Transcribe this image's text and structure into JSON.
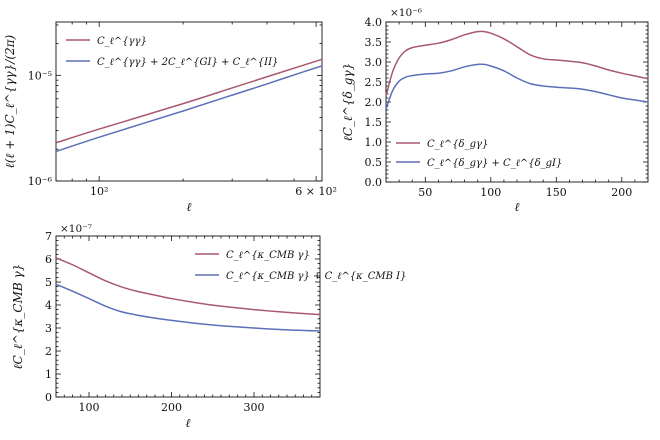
{
  "colors": {
    "series1": "#a8596e",
    "series2": "#5d6fb9",
    "axes": "#111111"
  },
  "chart_data": [
    {
      "type": "line",
      "xscale": "log",
      "yscale": "log",
      "xlabel": "ℓ",
      "ylabel": "ℓ(ℓ + 1)C_ℓ^{γγ}/(2π)",
      "xlim": [
        70,
        630
      ],
      "ylim": [
        1e-06,
        3.2e-05
      ],
      "tick_labels_x": [
        "10²",
        "6 × 10²"
      ],
      "tick_labels_y": [
        "10⁻⁶",
        "10⁻⁵"
      ],
      "grid": false,
      "legend_position": "top-left",
      "series": [
        {
          "name": "C_ℓ^{γγ}",
          "x": [
            70,
            100,
            200,
            300,
            400,
            500,
            630
          ],
          "y": [
            2.3e-06,
            3.1e-06,
            5.4e-06,
            7.6e-06,
            9.7e-06,
            1.17e-05,
            1.42e-05
          ]
        },
        {
          "name": "C_ℓ^{γγ} + 2C_ℓ^{GI} + C_ℓ^{II}",
          "x": [
            70,
            100,
            200,
            300,
            400,
            500,
            630
          ],
          "y": [
            1.9e-06,
            2.6e-06,
            4.6e-06,
            6.5e-06,
            8.3e-06,
            1.01e-05,
            1.23e-05
          ]
        }
      ]
    },
    {
      "type": "line",
      "xlabel": "ℓ",
      "ylabel": "ℓC_ℓ^{δ_gγ}",
      "xlim": [
        20,
        220
      ],
      "ylim": [
        0,
        4.0
      ],
      "y_multiplier": "×10⁻⁶",
      "tick_labels_x": [
        "50",
        "100",
        "150",
        "200"
      ],
      "tick_labels_y": [
        "0.0",
        "0.5",
        "1.0",
        "1.5",
        "2.0",
        "2.5",
        "3.0",
        "3.5",
        "4.0"
      ],
      "grid": false,
      "legend_position": "bottom-left",
      "series": [
        {
          "name": "C_ℓ^{δ_gγ}",
          "x": [
            20,
            25,
            30,
            35,
            40,
            50,
            60,
            70,
            80,
            90,
            95,
            100,
            110,
            120,
            130,
            140,
            150,
            160,
            170,
            180,
            190,
            200,
            210,
            220
          ],
          "y": [
            2.15,
            2.75,
            3.1,
            3.28,
            3.36,
            3.42,
            3.47,
            3.56,
            3.68,
            3.76,
            3.76,
            3.72,
            3.58,
            3.38,
            3.18,
            3.08,
            3.05,
            3.02,
            2.98,
            2.9,
            2.8,
            2.72,
            2.65,
            2.58
          ]
        },
        {
          "name": "C_ℓ^{δ_gγ} + C_ℓ^{δ_gI}",
          "x": [
            20,
            25,
            30,
            35,
            40,
            50,
            60,
            70,
            80,
            90,
            95,
            100,
            110,
            120,
            130,
            140,
            150,
            160,
            170,
            180,
            190,
            200,
            210,
            220
          ],
          "y": [
            1.82,
            2.28,
            2.52,
            2.62,
            2.66,
            2.7,
            2.72,
            2.78,
            2.88,
            2.94,
            2.94,
            2.9,
            2.78,
            2.6,
            2.46,
            2.4,
            2.37,
            2.35,
            2.32,
            2.26,
            2.18,
            2.1,
            2.05,
            2.0
          ]
        }
      ]
    },
    {
      "type": "line",
      "xlabel": "ℓ",
      "ylabel": "ℓC_ℓ^{κ_CMB γ}",
      "xlim": [
        60,
        380
      ],
      "ylim": [
        0,
        7
      ],
      "y_multiplier": "×10⁻⁷",
      "tick_labels_x": [
        "100",
        "200",
        "300"
      ],
      "tick_labels_y": [
        "0",
        "1",
        "2",
        "3",
        "4",
        "5",
        "6",
        "7"
      ],
      "grid": false,
      "legend_position": "top-right",
      "series": [
        {
          "name": "C_ℓ^{κ_CMB γ}",
          "x": [
            60,
            80,
            100,
            120,
            140,
            160,
            180,
            200,
            230,
            260,
            300,
            340,
            380
          ],
          "y": [
            6.05,
            5.75,
            5.4,
            5.05,
            4.78,
            4.58,
            4.43,
            4.28,
            4.1,
            3.95,
            3.8,
            3.68,
            3.58
          ]
        },
        {
          "name": "C_ℓ^{κ_CMB γ} + C_ℓ^{κ_CMB I}",
          "x": [
            60,
            80,
            100,
            120,
            140,
            160,
            180,
            200,
            230,
            260,
            300,
            340,
            380
          ],
          "y": [
            4.9,
            4.6,
            4.28,
            3.95,
            3.7,
            3.55,
            3.43,
            3.33,
            3.2,
            3.1,
            3.0,
            2.92,
            2.87
          ]
        }
      ]
    }
  ]
}
